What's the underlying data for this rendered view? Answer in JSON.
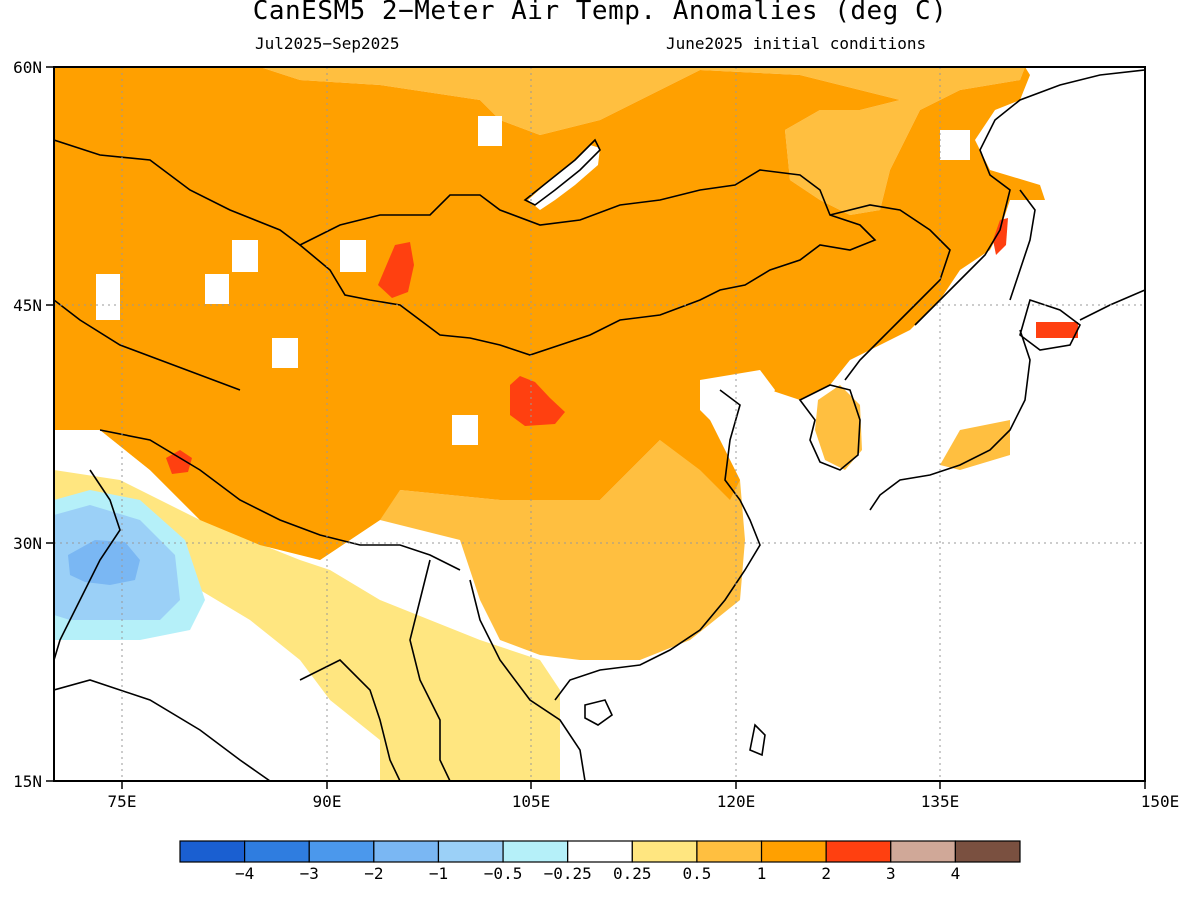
{
  "title": "CanESM5 2−Meter Air Temp. Anomalies (deg C)",
  "subtitle_left": "Jul2025−Sep2025",
  "subtitle_right": "June2025 initial conditions",
  "map": {
    "lon_range": [
      70,
      150
    ],
    "lat_range": [
      15,
      60
    ],
    "lon_ticks": [
      "75E",
      "90E",
      "105E",
      "120E",
      "135E",
      "150E"
    ],
    "lat_ticks": [
      "60N",
      "45N",
      "30N",
      "15N"
    ]
  },
  "legend": {
    "labels": [
      "−4",
      "−3",
      "−2",
      "−1",
      "−0.5",
      "−0.25",
      "0.25",
      "0.5",
      "1",
      "2",
      "3",
      "4"
    ],
    "colors": [
      "#1a5fd1",
      "#2f7de0",
      "#4b98ec",
      "#7ab7f3",
      "#9bd0f7",
      "#b5f0f9",
      "#ffffff",
      "#ffe680",
      "#ffbf40",
      "#ffa000",
      "#ff4010",
      "#d0a898",
      "#7a5040"
    ]
  }
}
